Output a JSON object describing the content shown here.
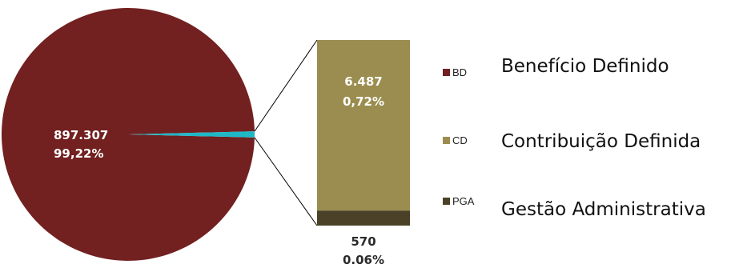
{
  "chart_data": {
    "type": "pie",
    "subtype": "bar-of-pie",
    "slices": [
      {
        "name": "BD",
        "value": 897307,
        "value_label": "897.307",
        "percent_label": "99,22%",
        "color": "#722020"
      },
      {
        "name": "CD",
        "value": 6487,
        "value_label": "6.487",
        "percent_label": "0,72%",
        "color": "#9b8d4f"
      },
      {
        "name": "PGA",
        "value": 570,
        "value_label": "570",
        "percent_label": "0.06%",
        "color": "#4a4128"
      }
    ],
    "pie_secondary_color": "#1fb7c6",
    "legend_position": "right"
  },
  "descriptions": [
    "Benefício Definido",
    "Contribuição Definida",
    "Gestão Administrativa"
  ]
}
